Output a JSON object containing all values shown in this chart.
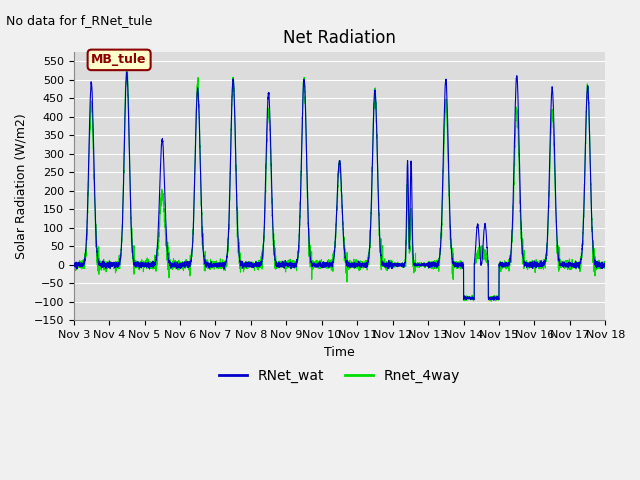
{
  "title": "Net Radiation",
  "xlabel": "Time",
  "ylabel": "Solar Radiation (W/m2)",
  "ylim": [
    -150,
    575
  ],
  "yticks": [
    -150,
    -100,
    -50,
    0,
    50,
    100,
    150,
    200,
    250,
    300,
    350,
    400,
    450,
    500,
    550
  ],
  "xlim": [
    0,
    15
  ],
  "xtick_positions": [
    0,
    1,
    2,
    3,
    4,
    5,
    6,
    7,
    8,
    9,
    10,
    11,
    12,
    13,
    14,
    15
  ],
  "xtick_labels": [
    "Nov 3",
    "Nov 4",
    "Nov 5",
    "Nov 6",
    "Nov 7",
    "Nov 8",
    "Nov 9",
    "Nov 10",
    "Nov 11",
    "Nov 12",
    "Nov 13",
    "Nov 14",
    "Nov 15",
    "Nov 16",
    "Nov 17",
    "Nov 18"
  ],
  "plot_bg": "#dcdcdc",
  "fig_bg": "#f0f0f0",
  "line1_color": "#0000cc",
  "line2_color": "#00dd00",
  "line1_label": "RNet_wat",
  "line2_label": "Rnet_4way",
  "annotation_text": "No data for f_RNet_tule",
  "legend_box_text": "MB_tule",
  "legend_box_facecolor": "#ffffcc",
  "legend_box_edgecolor": "#8b0000",
  "legend_box_textcolor": "#8b0000",
  "grid_color": "#ffffff",
  "title_fontsize": 12,
  "axis_label_fontsize": 9,
  "tick_fontsize": 8,
  "legend_fontsize": 10
}
